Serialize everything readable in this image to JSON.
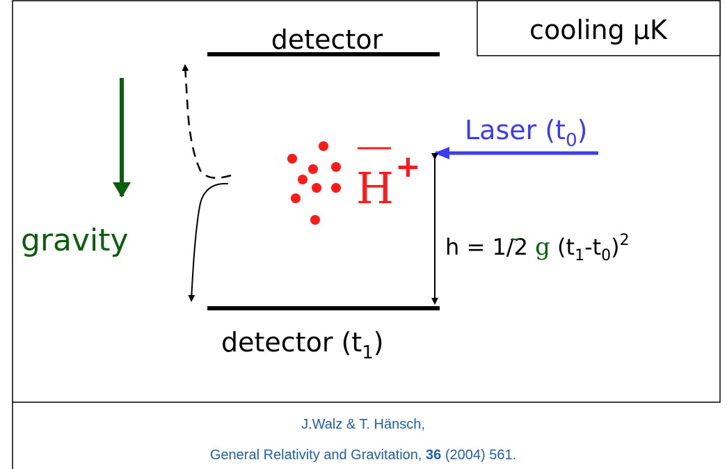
{
  "top_detector": "detector",
  "cooling_box": "cooling μK",
  "gravity": "gravity",
  "laser": {
    "text": "Laser (t",
    "sub": "0",
    "close": ")"
  },
  "antihydrogen": {
    "symbol": "H",
    "charge": "+"
  },
  "height_formula": {
    "lhs": "h = 1/2 ",
    "g": "g",
    "open": " (t",
    "sub1": "1",
    "minus": "-t",
    "sub0": "0",
    "close": ")",
    "power": "2"
  },
  "bottom_detector": {
    "text": "detector (t",
    "sub": "1",
    "close": ")"
  },
  "citation": {
    "line1": "J.Walz & T. Hänsch,",
    "line2_a": "General Relativity and Gravitation, ",
    "volume": "36",
    "line2_b": " (2004) 561."
  }
}
